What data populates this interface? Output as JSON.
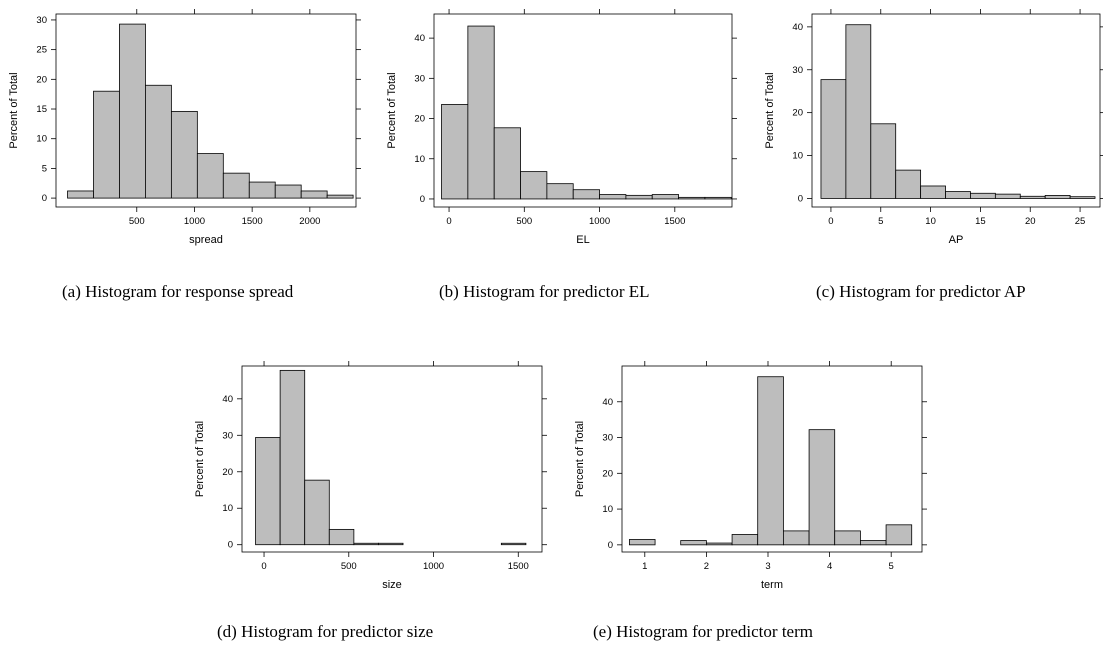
{
  "chart_data": [
    {
      "type": "bar",
      "caption": "(a)  Histogram for response spread",
      "xlabel": "spread",
      "ylabel": "Percent of Total",
      "xlim": [
        -200,
        2400
      ],
      "ylim": [
        -1.5,
        31
      ],
      "xticks": [
        500,
        1000,
        1500,
        2000
      ],
      "yticks": [
        0,
        5,
        10,
        15,
        20,
        25,
        30
      ],
      "bin_edges": [
        -100,
        125,
        350,
        575,
        800,
        1025,
        1250,
        1475,
        1700,
        1925,
        2150,
        2375
      ],
      "values": [
        1.2,
        18,
        29.3,
        19,
        14.6,
        7.5,
        4.2,
        2.7,
        2.2,
        1.2,
        0.5
      ]
    },
    {
      "type": "bar",
      "caption": "(b)  Histogram for predictor EL",
      "xlabel": "EL",
      "ylabel": "Percent of Total",
      "xlim": [
        -100,
        1880
      ],
      "ylim": [
        -2,
        46
      ],
      "xticks": [
        0,
        500,
        1000,
        1500
      ],
      "yticks": [
        0,
        10,
        20,
        30,
        40
      ],
      "bin_edges": [
        -50,
        125,
        300,
        475,
        650,
        825,
        1000,
        1175,
        1350,
        1525,
        1700,
        1875
      ],
      "values": [
        23.5,
        43,
        17.7,
        6.8,
        3.8,
        2.3,
        1.1,
        0.9,
        1.1,
        0.4,
        0.4
      ]
    },
    {
      "type": "bar",
      "caption": "(c)  Histogram for predictor AP",
      "xlabel": "AP",
      "ylabel": "Percent of Total",
      "xlim": [
        -1.9,
        27
      ],
      "ylim": [
        -2,
        43
      ],
      "xticks": [
        0,
        5,
        10,
        15,
        20,
        25
      ],
      "yticks": [
        0,
        10,
        20,
        30,
        40
      ],
      "bin_edges": [
        -1,
        1.5,
        4,
        6.5,
        9,
        11.5,
        14,
        16.5,
        19,
        21.5,
        24,
        26.5
      ],
      "values": [
        27.7,
        40.5,
        17.4,
        6.6,
        2.9,
        1.6,
        1.2,
        1,
        0.5,
        0.7,
        0.4
      ]
    },
    {
      "type": "bar",
      "caption": "(d)  Histogram for predictor size",
      "xlabel": "size",
      "ylabel": "Percent of Total",
      "xlim": [
        -130,
        1640
      ],
      "ylim": [
        -2,
        49
      ],
      "xticks": [
        0,
        500,
        1000,
        1500
      ],
      "yticks": [
        0,
        10,
        20,
        30,
        40
      ],
      "bin_edges": [
        -50,
        95,
        240,
        385,
        530,
        675,
        820,
        965,
        1110,
        1255,
        1400,
        1545
      ],
      "values": [
        29.4,
        47.8,
        17.7,
        4.2,
        0.4,
        0.4,
        0,
        0,
        0,
        0,
        0.4
      ]
    },
    {
      "type": "bar",
      "caption": "(e)  Histogram for predictor term",
      "xlabel": "term",
      "ylabel": "Percent of Total",
      "xlim": [
        0.63,
        5.5
      ],
      "ylim": [
        -2,
        50
      ],
      "xticks": [
        1,
        2,
        3,
        4,
        5
      ],
      "yticks": [
        0,
        10,
        20,
        30,
        40
      ],
      "bin_edges": [
        0.75,
        1.167,
        1.583,
        2,
        2.417,
        2.833,
        3.25,
        3.667,
        4.083,
        4.5,
        4.917,
        5.333
      ],
      "values": [
        1.5,
        0,
        1.2,
        0.5,
        2.9,
        47,
        3.9,
        32.2,
        3.9,
        1.2,
        5.6
      ]
    }
  ]
}
